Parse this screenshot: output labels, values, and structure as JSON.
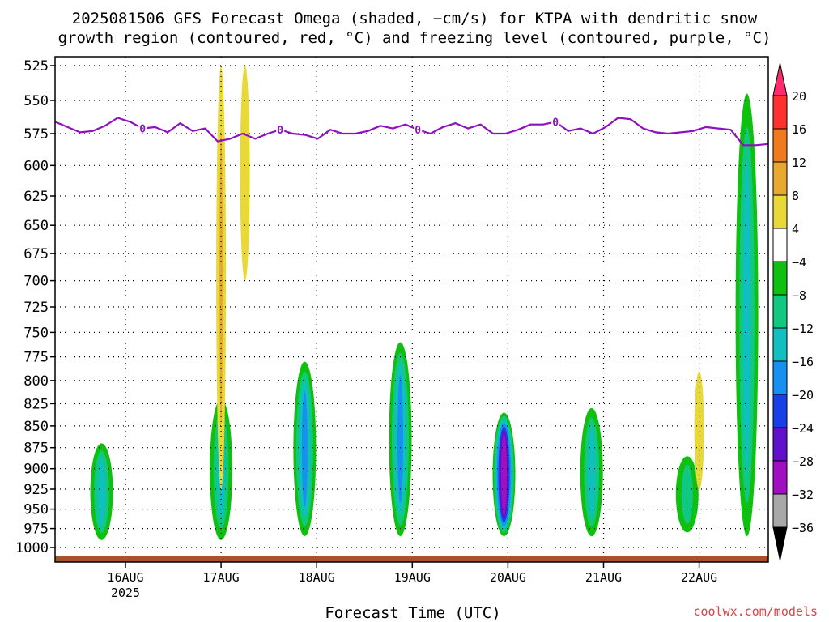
{
  "title_lines": [
    "2025081506 GFS Forecast Omega (shaded, −cm/s) for KTPA with dendritic snow",
    "growth region (contoured, red, °C) and freezing level (contoured, purple, °C)"
  ],
  "xlabel": "Forecast Time (UTC)",
  "credit": "coolwx.com/models",
  "chart_data": {
    "type": "heatmap",
    "y_axis": {
      "label": "",
      "ticks": [
        525,
        550,
        575,
        600,
        625,
        650,
        675,
        700,
        725,
        750,
        775,
        800,
        825,
        850,
        875,
        900,
        925,
        950,
        975,
        1000
      ],
      "range": [
        1000,
        520
      ],
      "scale": "log-pressure"
    },
    "x_axis": {
      "ticks": [
        "16AUG",
        "17AUG",
        "18AUG",
        "19AUG",
        "20AUG",
        "21AUG",
        "22AUG"
      ],
      "year_label": "2025"
    },
    "grid": true,
    "colorbar": {
      "levels": [
        20,
        16,
        12,
        8,
        4,
        -4,
        -8,
        -12,
        -16,
        -20,
        -24,
        -28,
        -32,
        -36
      ],
      "colors": [
        "#ff2b6b",
        "#ff3030",
        "#f07a20",
        "#e8a830",
        "#e8d838",
        "#ffffff",
        "#10c010",
        "#10c880",
        "#10c0c0",
        "#1890f0",
        "#1840e8",
        "#6010c8",
        "#a010c0",
        "#a8a8a8",
        "#000000"
      ]
    },
    "freezing_level": {
      "label": "0",
      "color": "#9010c0",
      "pressure_hpa": [
        566,
        570,
        574,
        573,
        569,
        563,
        566,
        571,
        570,
        574,
        567,
        573,
        571,
        581,
        579,
        575,
        579,
        575,
        572,
        575,
        576,
        579,
        572,
        575,
        575,
        573,
        569,
        571,
        568,
        572,
        575,
        570,
        567,
        571,
        568,
        575,
        575,
        572,
        568,
        568,
        566,
        573,
        571,
        575,
        570,
        563,
        564,
        571,
        574,
        575,
        574,
        573,
        570,
        571,
        572,
        584,
        584,
        583
      ]
    },
    "omega_features": [
      {
        "time": "15AUG18Z",
        "type": "upward",
        "pressure_top": 870,
        "pressure_bottom": 990,
        "peak": -14
      },
      {
        "time": "17AUG00Z",
        "type": "upward",
        "pressure_top": 820,
        "pressure_bottom": 990,
        "peak": -12
      },
      {
        "time": "17AUG00Z",
        "type": "downward",
        "pressure_top": 525,
        "pressure_bottom": 925,
        "peak": 14
      },
      {
        "time": "17AUG06Z",
        "type": "downward",
        "pressure_top": 525,
        "pressure_bottom": 700,
        "peak": 10
      },
      {
        "time": "17AUG21Z",
        "type": "upward",
        "pressure_top": 780,
        "pressure_bottom": 985,
        "peak": -18
      },
      {
        "time": "18AUG21Z",
        "type": "upward",
        "pressure_top": 760,
        "pressure_bottom": 985,
        "peak": -18
      },
      {
        "time": "19AUG23Z",
        "type": "upward",
        "pressure_top": 835,
        "pressure_bottom": 985,
        "peak": -32
      },
      {
        "time": "20AUG21Z",
        "type": "upward",
        "pressure_top": 830,
        "pressure_bottom": 985,
        "peak": -14
      },
      {
        "time": "21AUG21Z",
        "type": "upward",
        "pressure_top": 885,
        "pressure_bottom": 980,
        "peak": -8
      },
      {
        "time": "22AUG00Z",
        "type": "downward",
        "pressure_top": 790,
        "pressure_bottom": 925,
        "peak": 8
      },
      {
        "time": "22AUG12Z",
        "type": "upward",
        "pressure_top": 545,
        "pressure_bottom": 985,
        "peak": -14
      }
    ]
  }
}
